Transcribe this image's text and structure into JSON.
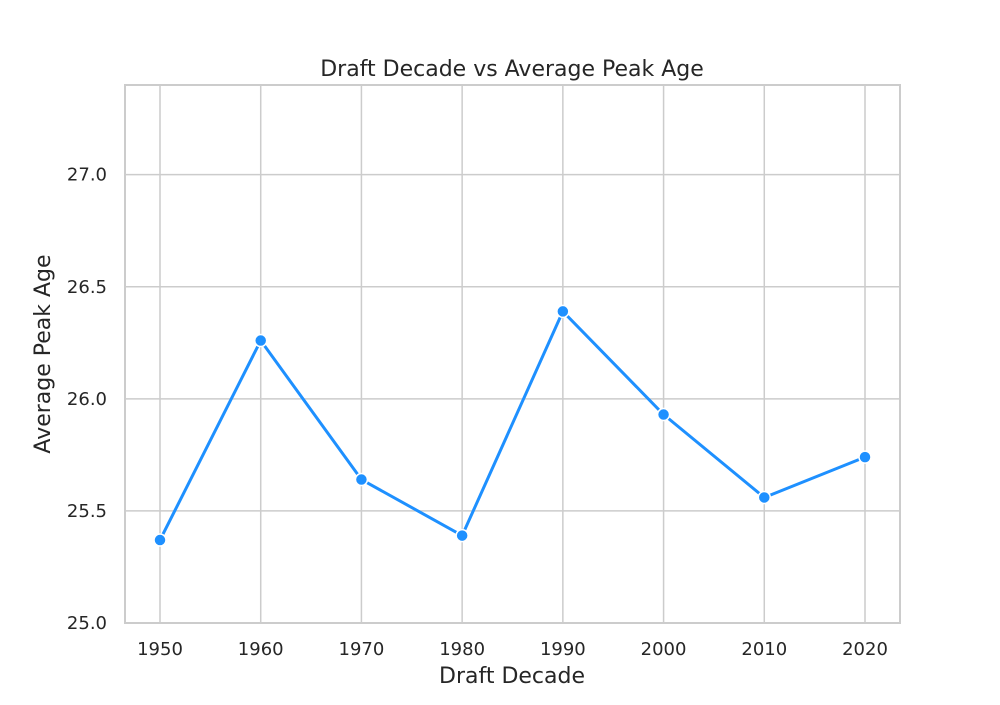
{
  "chart_data": {
    "type": "line",
    "title": "Draft Decade vs Average Peak Age",
    "xlabel": "Draft Decade",
    "ylabel": "Average Peak Age",
    "categories": [
      "1950",
      "1960",
      "1970",
      "1980",
      "1990",
      "2000",
      "2010",
      "2020"
    ],
    "series": [
      {
        "values": [
          25.37,
          26.26,
          25.64,
          25.39,
          26.39,
          25.93,
          25.56,
          25.74
        ],
        "color": "#1e90ff",
        "marker": "circle"
      }
    ],
    "ylim": [
      25.0,
      27.4
    ],
    "yticks": [
      "25.0",
      "25.5",
      "26.0",
      "26.5",
      "27.0"
    ],
    "grid": true,
    "legend": "none"
  }
}
